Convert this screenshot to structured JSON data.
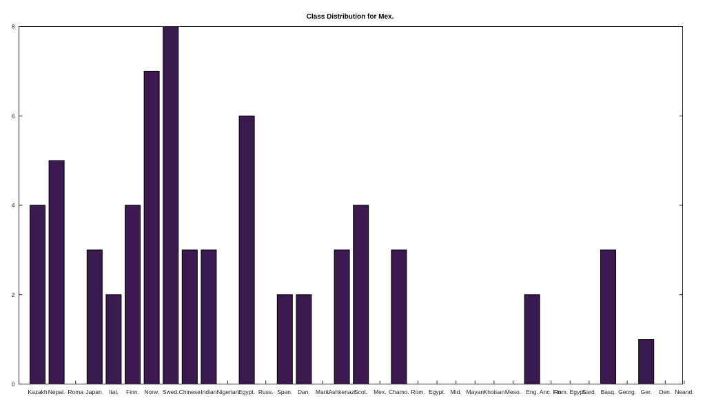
{
  "chart_data": {
    "type": "bar",
    "title": "Class Distribution for Mex.",
    "xlabel": "",
    "ylabel": "",
    "ylim": [
      0,
      8
    ],
    "yticks": [
      0,
      2,
      4,
      6,
      8
    ],
    "grid": false,
    "bar_color": "#3b1a4f",
    "categories": [
      "Kazakh",
      "Nepal.",
      "Roma",
      "Japan.",
      "Ital.",
      "Finn.",
      "Norw.",
      "Swed.",
      "Chinese",
      "Indian",
      "Nigerian",
      "Egypt.",
      "Russ.",
      "Span.",
      "Dan.",
      "Marit.",
      "Ashkenazi",
      "Scot.",
      "Mex.",
      "Chamo.",
      "Rom.",
      "Egypt.",
      "Mid.",
      "Mayan",
      "Khoisan",
      "Meso.",
      "Eng.",
      "Anc. Fin.",
      "Rom. Egypt.",
      "Sard.",
      "Basq.",
      "Georg.",
      "Ger.",
      "Den.",
      "Neand."
    ],
    "values": [
      4,
      5,
      0,
      3,
      2,
      4,
      7,
      8,
      3,
      3,
      0,
      6,
      0,
      2,
      2,
      0,
      3,
      4,
      0,
      3,
      0,
      0,
      0,
      0,
      0,
      0,
      2,
      0,
      0,
      0,
      3,
      0,
      1,
      0,
      0
    ]
  }
}
